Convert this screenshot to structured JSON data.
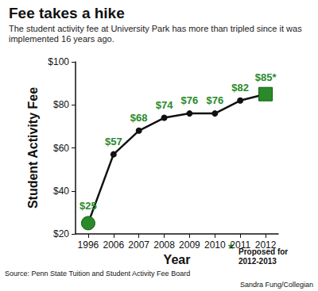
{
  "chart_data": {
    "type": "line",
    "title": "Fee takes a hike",
    "subtitle": "The student activity fee at University Park has more than tripled since it was implemented 16 years ago.",
    "x_label": "Year",
    "y_label": "Student Activity Fee",
    "categories": [
      "1996",
      "2006",
      "2007",
      "2008",
      "2009",
      "2010",
      "2011",
      "2012"
    ],
    "values": [
      25,
      57,
      68,
      74,
      76,
      76,
      82,
      85
    ],
    "value_labels": [
      "$25",
      "$57",
      "$68",
      "$74",
      "$76",
      "$76",
      "$82",
      "$85*"
    ],
    "color": "#111111",
    "marker": "circle",
    "line_style": "solid",
    "ylim": [
      20,
      100
    ],
    "yticks": [
      {
        "value": 20,
        "label": "$20"
      },
      {
        "value": 40,
        "label": "$40"
      },
      {
        "value": 60,
        "label": "$60"
      },
      {
        "value": 80,
        "label": "$80"
      },
      {
        "value": 100,
        "label": "$100"
      }
    ],
    "grid": false,
    "data_labels": true,
    "annotation": "*Proposed for 2012-2013",
    "source": "Source: Penn State Tuition and Student Activity Fee Board",
    "credit": "Sandra Fung/Collegian"
  }
}
